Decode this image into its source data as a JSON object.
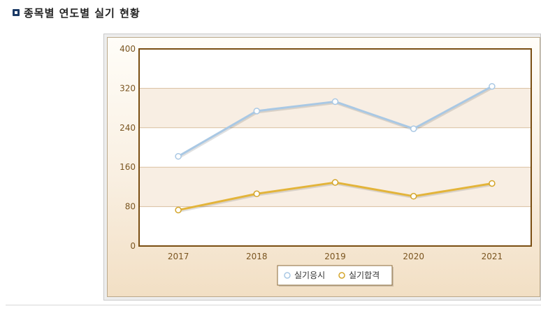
{
  "header": {
    "title": "종목별 연도별 실기 현황",
    "icon": "bullet-square-icon"
  },
  "chart_data": {
    "type": "line",
    "categories": [
      "2017",
      "2018",
      "2019",
      "2020",
      "2021"
    ],
    "series": [
      {
        "name": "실기응시",
        "values": [
          182,
          274,
          293,
          238,
          324
        ],
        "color": "#a9c8e4",
        "point_stroke": "#a9c8e4"
      },
      {
        "name": "실기합격",
        "values": [
          73,
          106,
          129,
          101,
          127
        ],
        "color": "#e3b43a",
        "point_stroke": "#d4a52a"
      }
    ],
    "ylim": [
      0,
      400
    ],
    "yticks": [
      "0",
      "80",
      "160",
      "240",
      "320",
      "400"
    ],
    "grid": true,
    "legend_position": "bottom-center",
    "colors": {
      "plot_border": "#7a4e12",
      "band": "#f8eee3",
      "gridline": "#d9bfa0",
      "tick_text": "#7a5520"
    }
  }
}
